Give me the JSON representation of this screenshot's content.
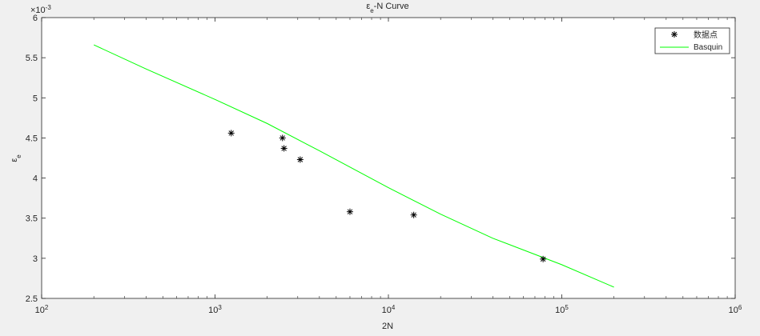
{
  "window": {
    "background": "#f0f0f0"
  },
  "chart_data": {
    "type": "scatter",
    "title": {
      "base": "ε",
      "sub": "e",
      "rest": "-N Curve"
    },
    "xlabel": "2N",
    "ylabel": {
      "base": "ε",
      "sub": "e"
    },
    "x_scale": "log",
    "xlim": [
      100,
      1000000
    ],
    "x_ticks": [
      {
        "value": 100,
        "base": "10",
        "exp": "2"
      },
      {
        "value": 1000,
        "base": "10",
        "exp": "3"
      },
      {
        "value": 10000,
        "base": "10",
        "exp": "4"
      },
      {
        "value": 100000,
        "base": "10",
        "exp": "5"
      },
      {
        "value": 1000000,
        "base": "10",
        "exp": "6"
      }
    ],
    "ylim": [
      2.5,
      6.0
    ],
    "y_ticks": [
      2.5,
      3,
      3.5,
      4,
      4.5,
      5,
      5.5,
      6
    ],
    "y_tick_labels": [
      "2.5",
      "3",
      "3.5",
      "4",
      "4.5",
      "5",
      "5.5",
      "6"
    ],
    "y_multiplier": {
      "base": "×10",
      "exp": "-3"
    },
    "grid": false,
    "legend_position": "top-right",
    "series": [
      {
        "name": "数据点",
        "kind": "scatter",
        "marker": "asterisk",
        "color": "#000000",
        "points": [
          [
            1240,
            4.56
          ],
          [
            2450,
            4.5
          ],
          [
            2500,
            4.37
          ],
          [
            3100,
            4.23
          ],
          [
            6000,
            3.58
          ],
          [
            14000,
            3.54
          ],
          [
            78000,
            2.99
          ]
        ]
      },
      {
        "name": "Basquin",
        "kind": "line",
        "color": "#00ff00",
        "points": [
          [
            200,
            5.66
          ],
          [
            400,
            5.36
          ],
          [
            1000,
            4.98
          ],
          [
            2000,
            4.68
          ],
          [
            4000,
            4.34
          ],
          [
            10000,
            3.88
          ],
          [
            20000,
            3.55
          ],
          [
            40000,
            3.25
          ],
          [
            100000,
            2.92
          ],
          [
            200000,
            2.64
          ]
        ]
      }
    ]
  }
}
